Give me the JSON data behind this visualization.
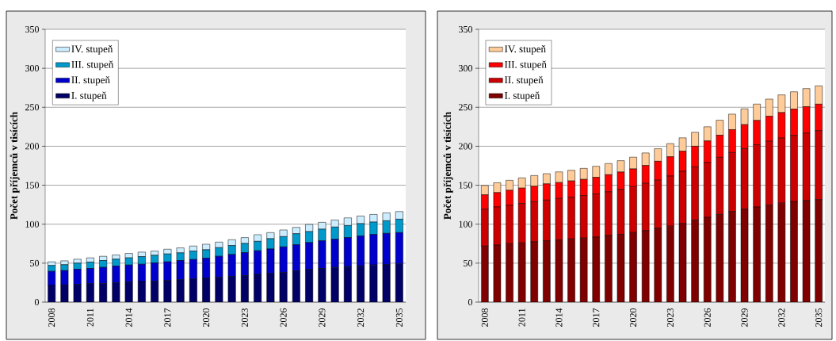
{
  "chart_data": [
    {
      "type": "bar",
      "stacked": true,
      "ylabel": "Počet příjemců v tisících",
      "categories": [
        "2008",
        null,
        null,
        "2011",
        null,
        null,
        "2014",
        null,
        null,
        "2017",
        null,
        null,
        "2020",
        null,
        null,
        "2023",
        null,
        null,
        "2026",
        null,
        null,
        "2029",
        null,
        null,
        "2032",
        null,
        null,
        "2035"
      ],
      "series": [
        {
          "name": "I. stupeň",
          "color": "#000066",
          "values": [
            21.3,
            22,
            22.6,
            23.6,
            24,
            25,
            26,
            26.4,
            27,
            28,
            28.7,
            29.7,
            30.7,
            32.1,
            33.1,
            34.1,
            35.8,
            36.8,
            38.2,
            40.2,
            41.9,
            43.2,
            44.6,
            45.6,
            46.6,
            47.6,
            48.3,
            49.3
          ]
        },
        {
          "name": "II. stupeň",
          "color": "#0000cc",
          "values": [
            18.2,
            18.5,
            19.6,
            19.6,
            20.6,
            21.3,
            21.6,
            22.2,
            23.3,
            23.7,
            24.7,
            25,
            25.7,
            26.7,
            28,
            29.4,
            30.1,
            31.4,
            32.7,
            33.4,
            34.5,
            35.5,
            36.1,
            37.2,
            38.2,
            39.2,
            39.9,
            39.9
          ]
        },
        {
          "name": "III. stupeň",
          "color": "#0099cc",
          "values": [
            7.5,
            7.5,
            7.8,
            8.2,
            8.8,
            8.8,
            9.2,
            9.8,
            9.8,
            10.1,
            9.8,
            10.8,
            10.8,
            11.1,
            11.5,
            11.8,
            12.1,
            13.2,
            13.2,
            14.2,
            14.1,
            14.9,
            15.6,
            15.5,
            15.9,
            15.9,
            16.2,
            17.2
          ]
        },
        {
          "name": "IV. stupeň",
          "color": "#ccecff",
          "values": [
            4.7,
            5,
            5.1,
            5.4,
            5.4,
            5.4,
            5.7,
            5.8,
            5.4,
            6.1,
            6.4,
            6.5,
            7.1,
            7.1,
            7.5,
            7.5,
            8.5,
            7.8,
            8.5,
            8.1,
            9.2,
            8.8,
            9.1,
            9.8,
            9.8,
            9.8,
            10.1,
            9.8
          ]
        }
      ],
      "ylim": [
        0,
        350
      ],
      "yticks": [
        0,
        50,
        100,
        150,
        200,
        250,
        300,
        350
      ],
      "grid": "y",
      "legend": "top left"
    },
    {
      "type": "bar",
      "stacked": true,
      "ylabel": "Počet příjemců v tisících",
      "categories": [
        "2008",
        null,
        null,
        "2011",
        null,
        null,
        "2014",
        null,
        null,
        "2017",
        null,
        null,
        "2020",
        null,
        null,
        "2023",
        null,
        null,
        "2026",
        null,
        null,
        "2029",
        null,
        null,
        "2032",
        null,
        null,
        "2035"
      ],
      "series": [
        {
          "name": "I. stupeň",
          "color": "#800000",
          "values": [
            71.9,
            73.3,
            75,
            76,
            77.4,
            78.8,
            79.8,
            81.1,
            82.2,
            83.5,
            85.6,
            86.9,
            89.3,
            91.7,
            94.8,
            97.5,
            100.9,
            105.4,
            108.8,
            112.5,
            116.2,
            119.3,
            122,
            124.7,
            127,
            129.1,
            130.4,
            131.5
          ]
        },
        {
          "name": "II. stupeň",
          "color": "#cc0000",
          "values": [
            47.4,
            48.8,
            49.1,
            50.5,
            51.5,
            52.1,
            53.2,
            53.6,
            54.5,
            55.3,
            55.9,
            57.7,
            59,
            60.7,
            61.7,
            64.3,
            67,
            68.2,
            70.3,
            73.3,
            75.7,
            77.7,
            80,
            81.7,
            83.5,
            84.8,
            86.5,
            88.5
          ]
        },
        {
          "name": "III. stupeň",
          "color": "#ff0000",
          "values": [
            18.4,
            18.4,
            19.4,
            19.8,
            19.8,
            20.8,
            20.4,
            20.8,
            20.8,
            21.3,
            22,
            22.3,
            22.6,
            22.9,
            24.2,
            24.7,
            25.7,
            26.4,
            27.7,
            28.4,
            29.4,
            30.7,
            31.1,
            32.1,
            32.7,
            33.7,
            33.8,
            34
          ]
        },
        {
          "name": "IV. stupeň",
          "color": "#ffcc99",
          "values": [
            12,
            12.7,
            12.8,
            13.1,
            13.7,
            13.1,
            13.7,
            13.7,
            14.1,
            14.2,
            14.3,
            14.6,
            15.1,
            16.1,
            16.1,
            16.9,
            17.2,
            17.9,
            18.2,
            19.2,
            19.9,
            20.3,
            21,
            22,
            22.7,
            22.3,
            23.3,
            23.5
          ]
        }
      ],
      "ylim": [
        0,
        350
      ],
      "yticks": [
        0,
        50,
        100,
        150,
        200,
        250,
        300,
        350
      ],
      "grid": "y",
      "legend": "top left"
    }
  ]
}
